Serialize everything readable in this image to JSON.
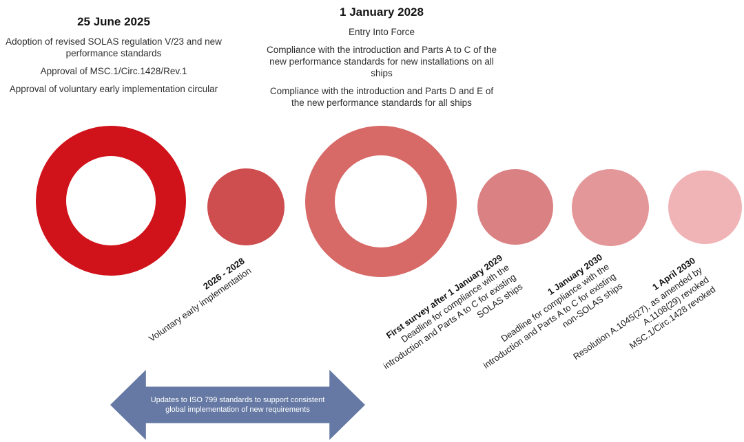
{
  "header_blocks": [
    {
      "date": "25 June 2025",
      "paragraphs": [
        "Adoption of revised SOLAS regulation V/23 and new performance standards",
        "Approval of MSC.1/Circ.1428/Rev.1",
        "Approval of voluntary early implementation circular"
      ]
    },
    {
      "date": "1 January 2028",
      "subtitle": "Entry Into Force",
      "paragraphs": [
        "Compliance with the introduction and Parts A to C of the new performance standards for new installations on all ships",
        "Compliance with the introduction and Parts D and E of the new performance standards for all ships"
      ]
    }
  ],
  "timeline": {
    "circles": [
      {
        "name": "adoption-2025",
        "type": "ring",
        "color": "#d0121a"
      },
      {
        "name": "voluntary-2026-2028",
        "type": "filled",
        "color": "#ce4d4f"
      },
      {
        "name": "entry-into-force-2028",
        "type": "ring",
        "color": "#d76967"
      },
      {
        "name": "first-survey-2029",
        "type": "filled",
        "color": "#da8183"
      },
      {
        "name": "january-2030",
        "type": "filled",
        "color": "#e49799"
      },
      {
        "name": "april-2030",
        "type": "filled",
        "color": "#f0b4b7"
      }
    ],
    "labels": [
      {
        "date": "2026 - 2028",
        "lines": [
          "Voluntary early implementation"
        ]
      },
      {
        "date": "First survey after 1 January 2029",
        "lines": [
          "Deadline for compliance with the",
          "introduction and Parts A to C for existing",
          "SOLAS ships"
        ]
      },
      {
        "date": "1 January 2030",
        "lines": [
          "Deadline for compliance with the",
          "introduction and Parts A to C for existing",
          "non-SOLAS ships"
        ]
      },
      {
        "date": "1 April 2030",
        "lines": [
          "Resolution A.1045(27), as amended by",
          "A.1108(29) revoked",
          "MSC.1/Circ.1428 revoked"
        ]
      }
    ]
  },
  "arrow": {
    "color": "#6579a4",
    "lines": [
      "Updates to ISO 799 standards to support consistent",
      "global implementation of new requirements"
    ]
  }
}
